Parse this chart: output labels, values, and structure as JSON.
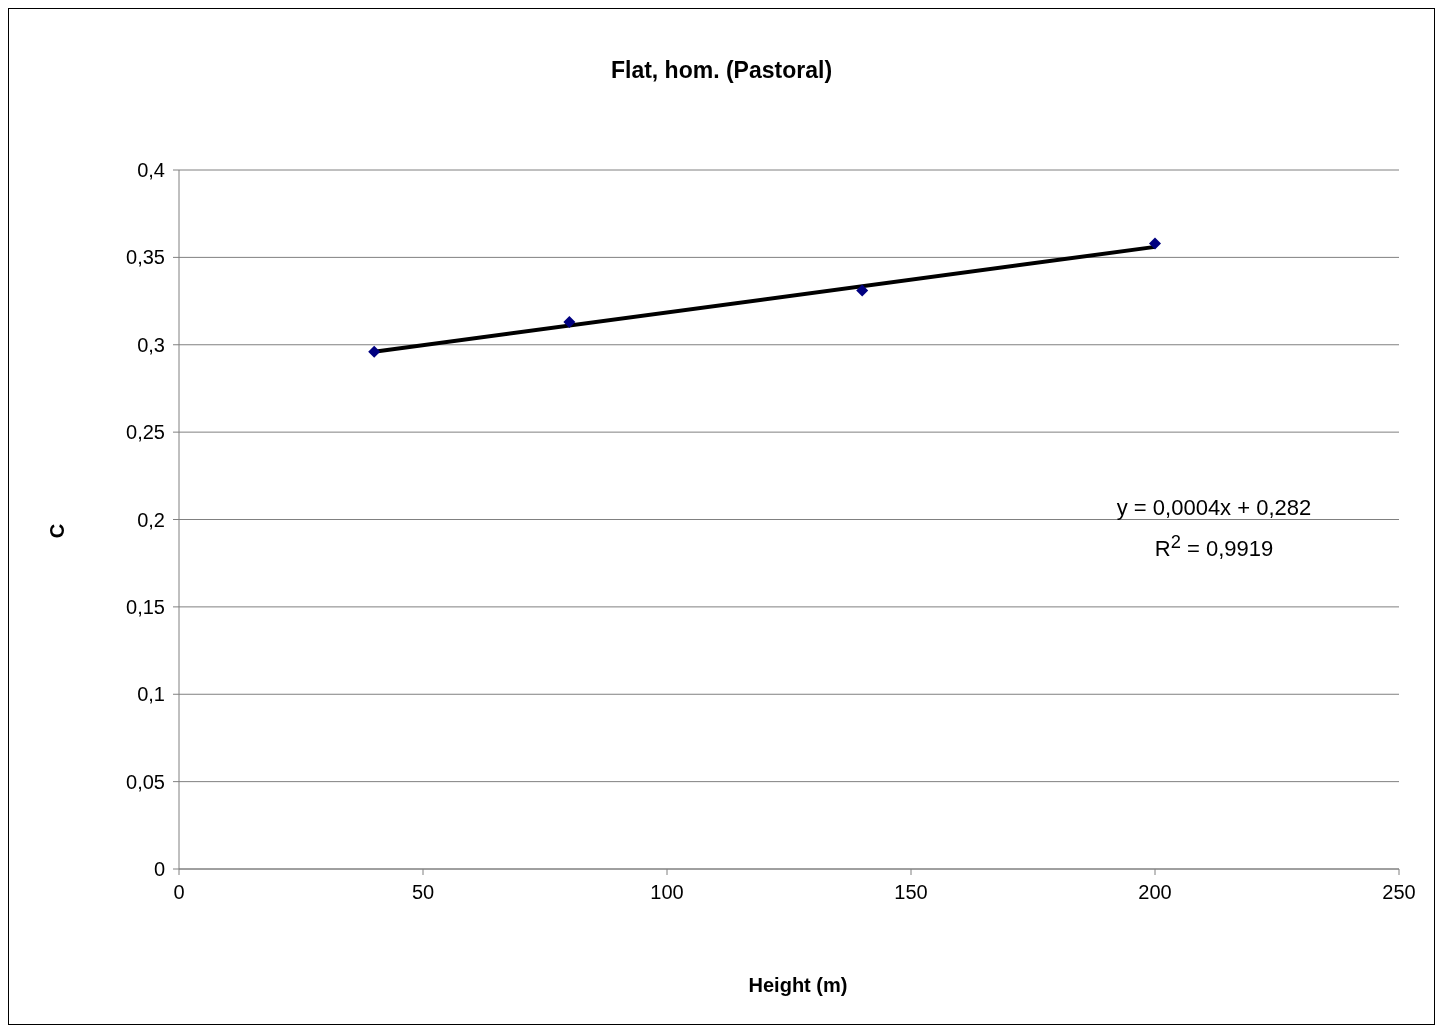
{
  "chart_data": {
    "type": "scatter",
    "title": "Flat, hom. (Pastoral)",
    "xlabel": "Height (m)",
    "ylabel": "C",
    "x": [
      40,
      80,
      140,
      200
    ],
    "series": [
      {
        "color": "#000080",
        "marker": "diamond",
        "values": [
          0.296,
          0.313,
          0.331,
          0.358
        ]
      },
      {
        "type": "line",
        "color": "#000000",
        "marker": "none",
        "x": [
          40,
          200
        ],
        "values": [
          0.296,
          0.356
        ]
      }
    ],
    "xlim": [
      0,
      250
    ],
    "xticks": [
      0,
      50,
      100,
      150,
      200,
      250
    ],
    "ylim": [
      0,
      0.4
    ],
    "yticks": [
      {
        "value": 0,
        "label": "0"
      },
      {
        "value": 0.05,
        "label": "0,05"
      },
      {
        "value": 0.1,
        "label": "0,1"
      },
      {
        "value": 0.15,
        "label": "0,15"
      },
      {
        "value": 0.2,
        "label": "0,2"
      },
      {
        "value": 0.25,
        "label": "0,25"
      },
      {
        "value": 0.3,
        "label": "0,3"
      },
      {
        "value": 0.35,
        "label": "0,35"
      },
      {
        "value": 0.4,
        "label": "0,4"
      }
    ],
    "grid": "y",
    "legend": false,
    "annotations": [
      "y = 0,0004x + 0,282",
      "R$^{2}$ = 0,9919"
    ]
  }
}
